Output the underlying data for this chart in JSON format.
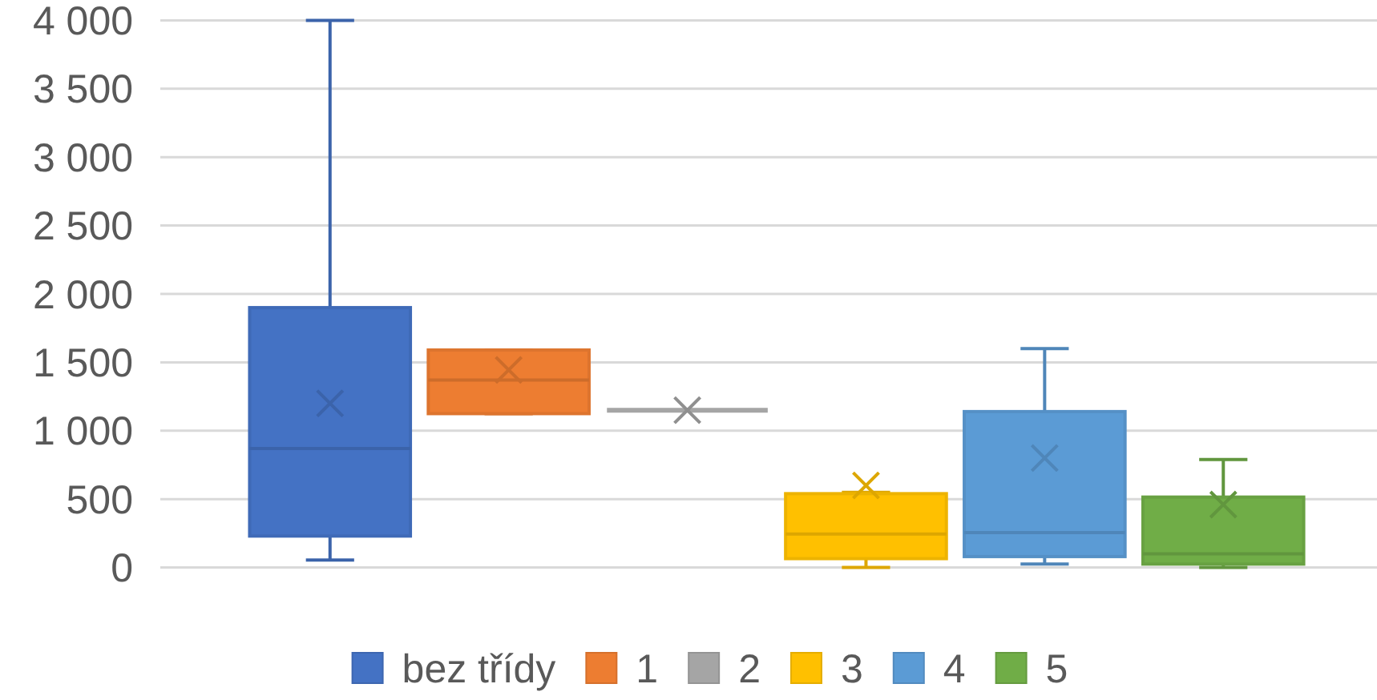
{
  "chart_data": {
    "type": "box",
    "categories": [
      null
    ],
    "series": [
      {
        "name": "bez třídy",
        "color": "#4472c4",
        "boxes": [
          {
            "low": 55,
            "q1": 230,
            "median": 870,
            "q3": 1900,
            "high": 4000,
            "mean": 1200
          }
        ]
      },
      {
        "name": "1",
        "color": "#ed7d31",
        "boxes": [
          {
            "low": 1125,
            "q1": 1125,
            "median": 1370,
            "q3": 1590,
            "high": 1590,
            "mean": 1445
          }
        ]
      },
      {
        "name": "2",
        "color": "#a5a5a5",
        "boxes": [
          {
            "low": 1150,
            "q1": 1150,
            "median": 1150,
            "q3": 1150,
            "high": 1150,
            "mean": 1150
          }
        ]
      },
      {
        "name": "3",
        "color": "#ffc000",
        "boxes": [
          {
            "low": 0,
            "q1": 65,
            "median": 245,
            "q3": 540,
            "high": 550,
            "mean": 600
          }
        ]
      },
      {
        "name": "4",
        "color": "#5b9bd5",
        "boxes": [
          {
            "low": 25,
            "q1": 80,
            "median": 255,
            "q3": 1140,
            "high": 1600,
            "mean": 800
          }
        ]
      },
      {
        "name": "5",
        "color": "#70ad47",
        "boxes": [
          {
            "low": 0,
            "q1": 25,
            "median": 100,
            "q3": 515,
            "high": 790,
            "mean": 460
          }
        ]
      }
    ],
    "ylim": [
      0,
      4000
    ],
    "yticks": [
      0,
      500,
      {
        "value": 1000,
        "label": "1 000"
      },
      {
        "value": 1500,
        "label": "1 500"
      },
      {
        "value": 2000,
        "label": "2 000"
      },
      {
        "value": 2500,
        "label": "2 500"
      },
      {
        "value": 3000,
        "label": "3 000"
      },
      {
        "value": 3500,
        "label": "3 500"
      },
      {
        "value": 4000,
        "label": "4 000"
      }
    ],
    "grid": "y",
    "legend": "bottom"
  }
}
